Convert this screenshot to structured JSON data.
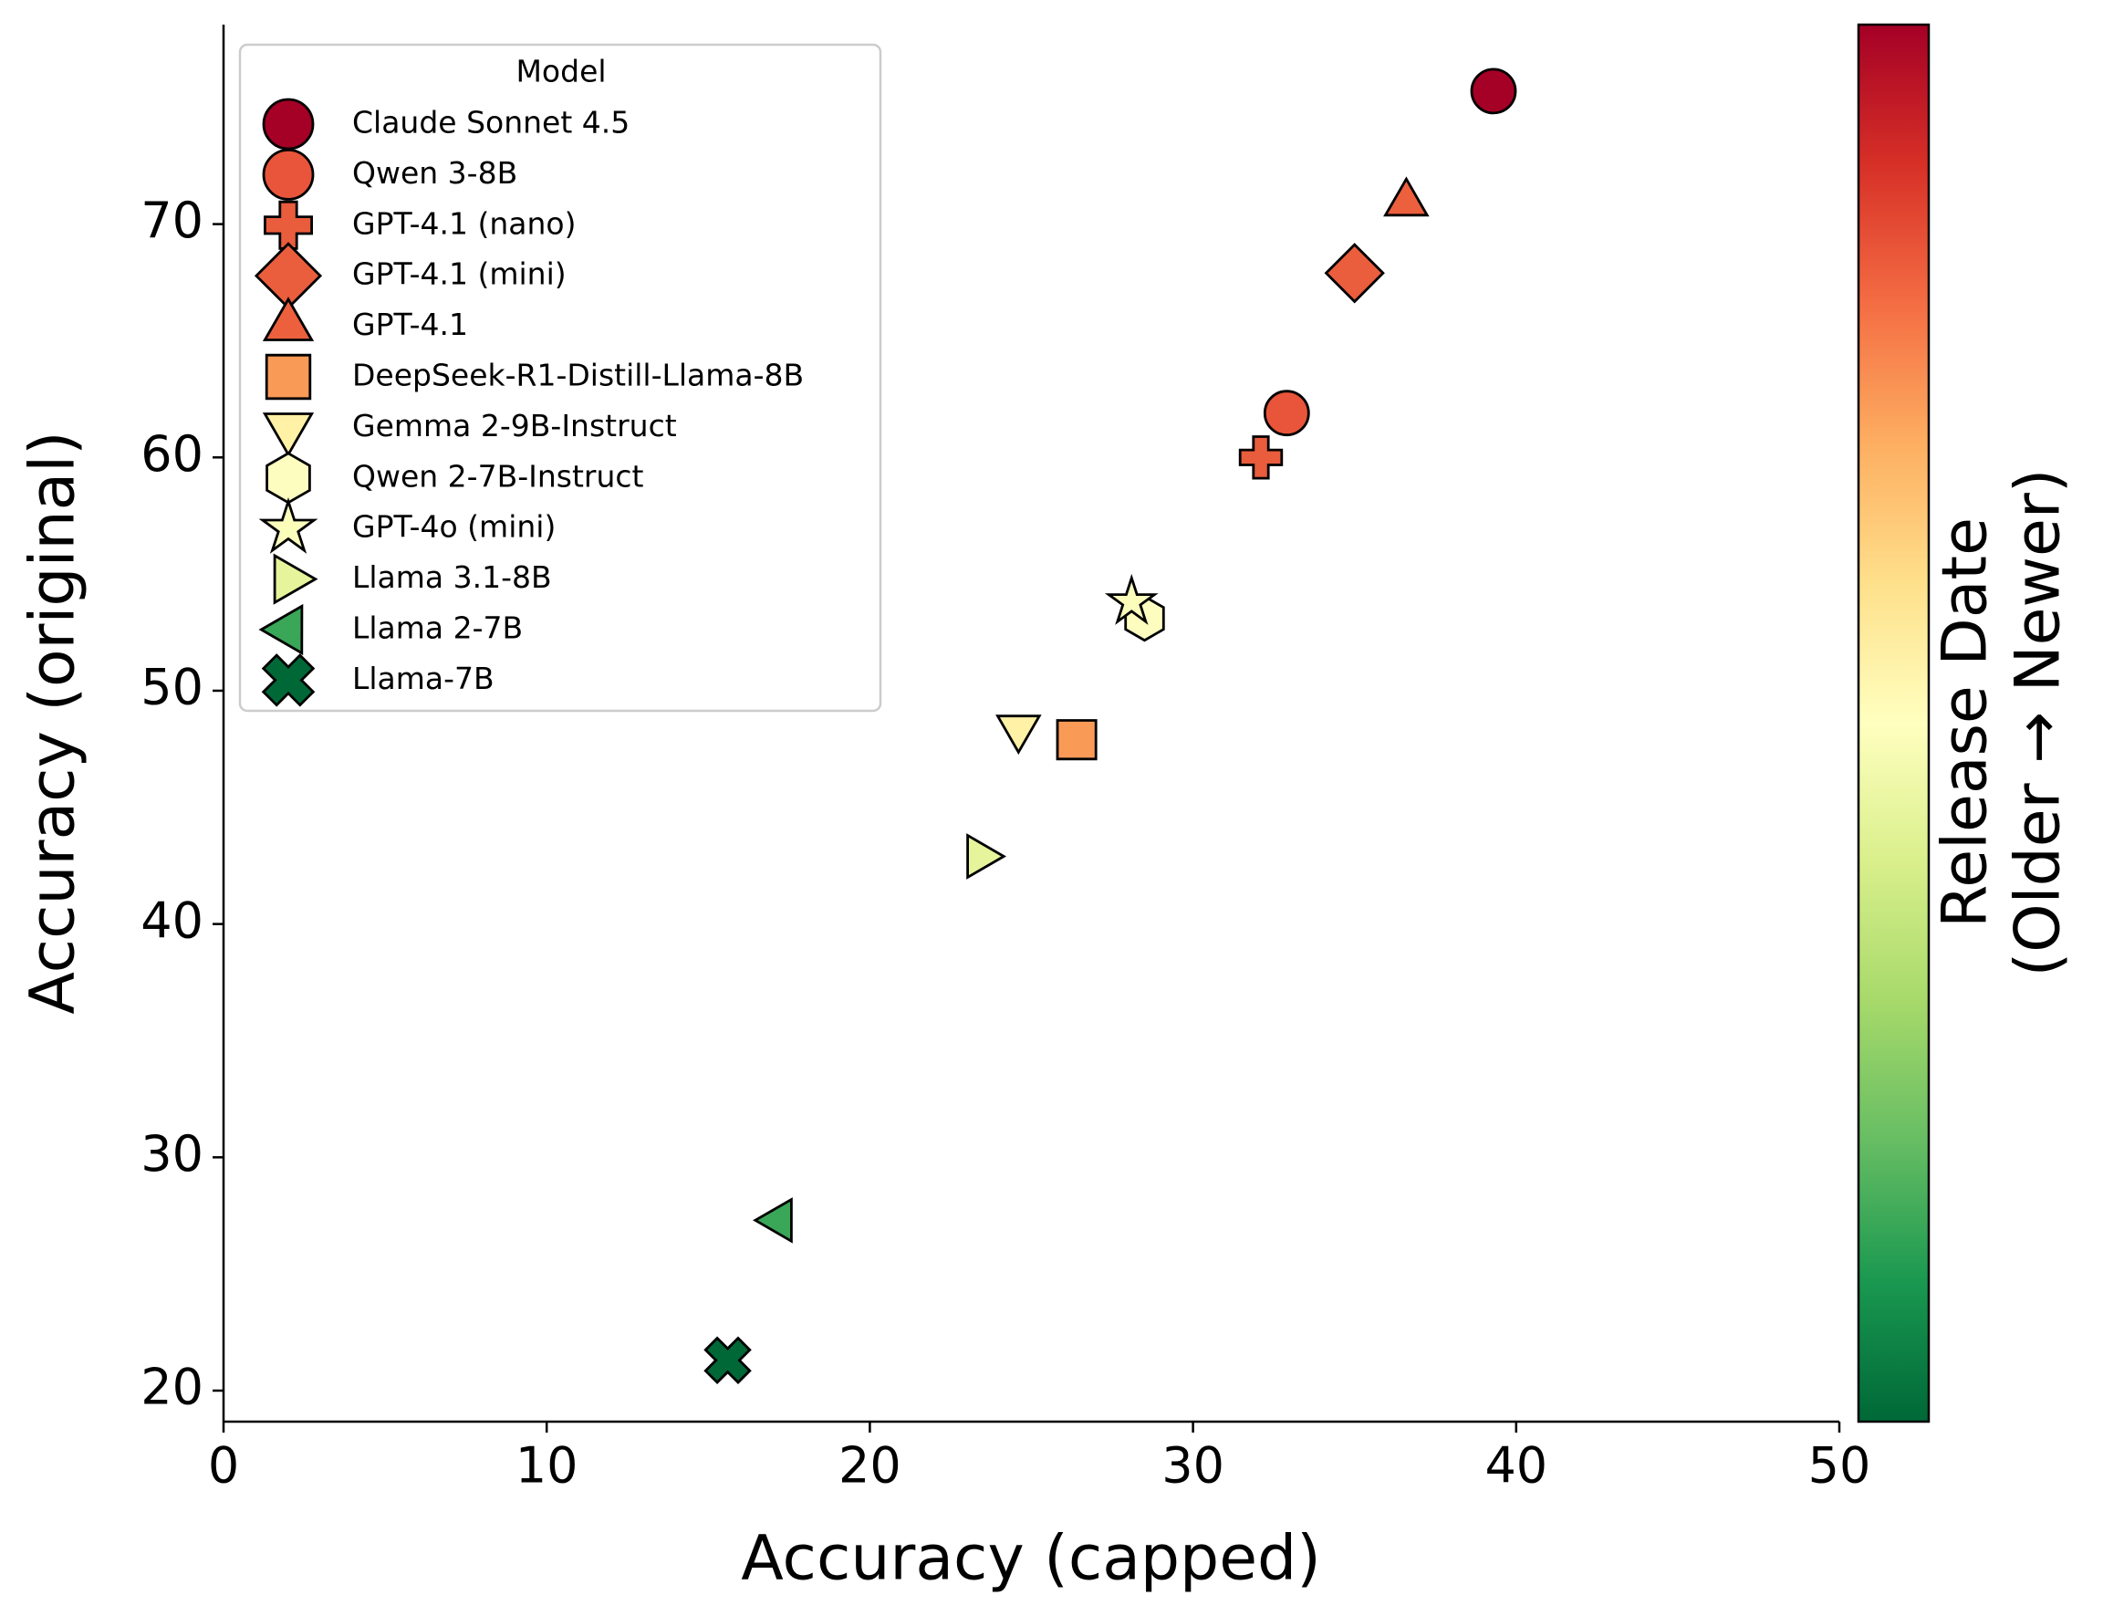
{
  "chart_data": {
    "type": "scatter",
    "xlabel": "Accuracy (capped)",
    "ylabel": "Accuracy (original)",
    "xlim": [
      0,
      50
    ],
    "ylim": [
      18.67,
      78.55
    ],
    "xticks": [
      0,
      10,
      20,
      30,
      40,
      50
    ],
    "yticks": [
      20,
      30,
      40,
      50,
      60,
      70
    ],
    "legend_title": "Model",
    "legend": "upper left",
    "colorbar_label": [
      "Release Date",
      "(Older → Newer)"
    ],
    "colormap": [
      "#a50026",
      "#d73027",
      "#f46d43",
      "#fdae61",
      "#fee08b",
      "#ffffbf",
      "#d9ef8b",
      "#a6d96a",
      "#66bd63",
      "#1a9850",
      "#006837"
    ],
    "series": [
      {
        "name": "Claude Sonnet 4.5",
        "color": "#a50026",
        "marker": "circle",
        "x": [
          39.3
        ],
        "values": [
          75.7
        ]
      },
      {
        "name": "Qwen 3-8B",
        "color": "#e8553a",
        "marker": "circle",
        "x": [
          32.9
        ],
        "values": [
          61.9
        ]
      },
      {
        "name": "GPT-4.1 (nano)",
        "color": "#e95c3c",
        "marker": "plus",
        "x": [
          32.1
        ],
        "values": [
          60.0
        ]
      },
      {
        "name": "GPT-4.1 (mini)",
        "color": "#ea5e3d",
        "marker": "diamond",
        "x": [
          35.0
        ],
        "values": [
          67.9
        ]
      },
      {
        "name": "GPT-4.1",
        "color": "#ec603e",
        "marker": "triangle-up",
        "x": [
          36.6
        ],
        "values": [
          70.9
        ]
      },
      {
        "name": "DeepSeek-R1-Distill-Llama-8B",
        "color": "#f99a57",
        "marker": "square",
        "x": [
          26.4
        ],
        "values": [
          47.9
        ]
      },
      {
        "name": "Gemma 2-9B-Instruct",
        "color": "#fff1a6",
        "marker": "triangle-down",
        "x": [
          24.6
        ],
        "values": [
          48.4
        ]
      },
      {
        "name": "Qwen 2-7B-Instruct",
        "color": "#fdfdc0",
        "marker": "hexagon",
        "x": [
          28.5
        ],
        "values": [
          53.1
        ]
      },
      {
        "name": "GPT-4o (mini)",
        "color": "#fbfdbb",
        "marker": "star",
        "x": [
          28.1
        ],
        "values": [
          53.8
        ]
      },
      {
        "name": "Llama 3.1-8B",
        "color": "#e6f49c",
        "marker": "triangle-right",
        "x": [
          23.4
        ],
        "values": [
          42.9
        ]
      },
      {
        "name": "Llama 2-7B",
        "color": "#3aa657",
        "marker": "triangle-left",
        "x": [
          17.2
        ],
        "values": [
          27.3
        ]
      },
      {
        "name": "Llama-7B",
        "color": "#006837",
        "marker": "x",
        "x": [
          15.6
        ],
        "values": [
          21.3
        ]
      }
    ]
  }
}
